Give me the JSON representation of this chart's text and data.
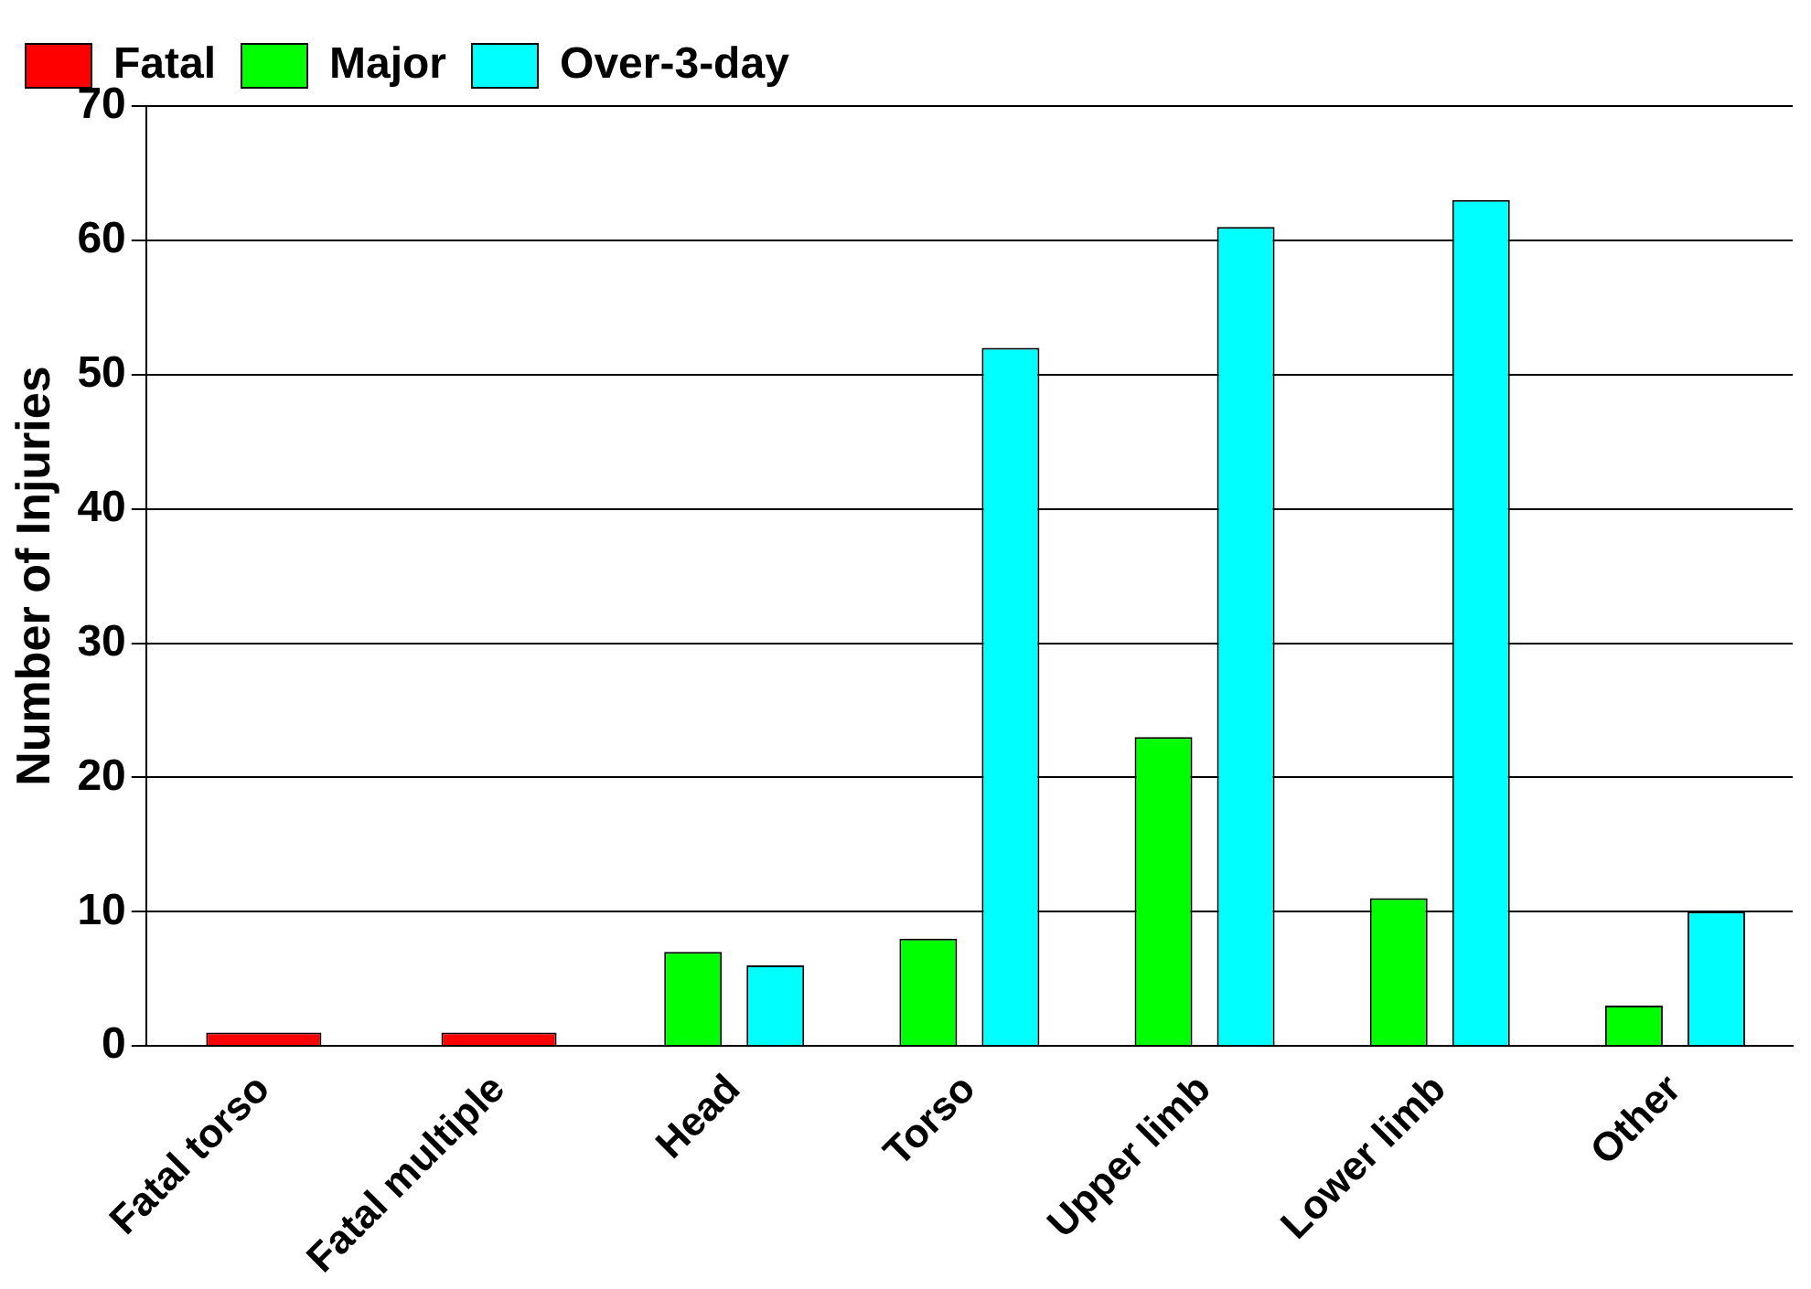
{
  "chart_data": {
    "type": "bar",
    "ylabel": "Number of Injuries",
    "categories": [
      "Fatal torso",
      "Fatal multiple",
      "Head",
      "Torso",
      "Upper limb",
      "Lower limb",
      "Other"
    ],
    "series": [
      {
        "name": "Fatal",
        "color": "#ff0000",
        "values": [
          1,
          1,
          null,
          null,
          null,
          null,
          null
        ]
      },
      {
        "name": "Major",
        "color": "#00ff00",
        "values": [
          null,
          null,
          7,
          8,
          23,
          11,
          3
        ]
      },
      {
        "name": "Over-3-day",
        "color": "#00ffff",
        "values": [
          null,
          null,
          6,
          52,
          61,
          63,
          10
        ]
      }
    ],
    "ylim": [
      0,
      70
    ],
    "yticks": [
      0,
      10,
      20,
      30,
      40,
      50,
      60,
      70
    ],
    "grid": "y",
    "legend": "top left"
  }
}
